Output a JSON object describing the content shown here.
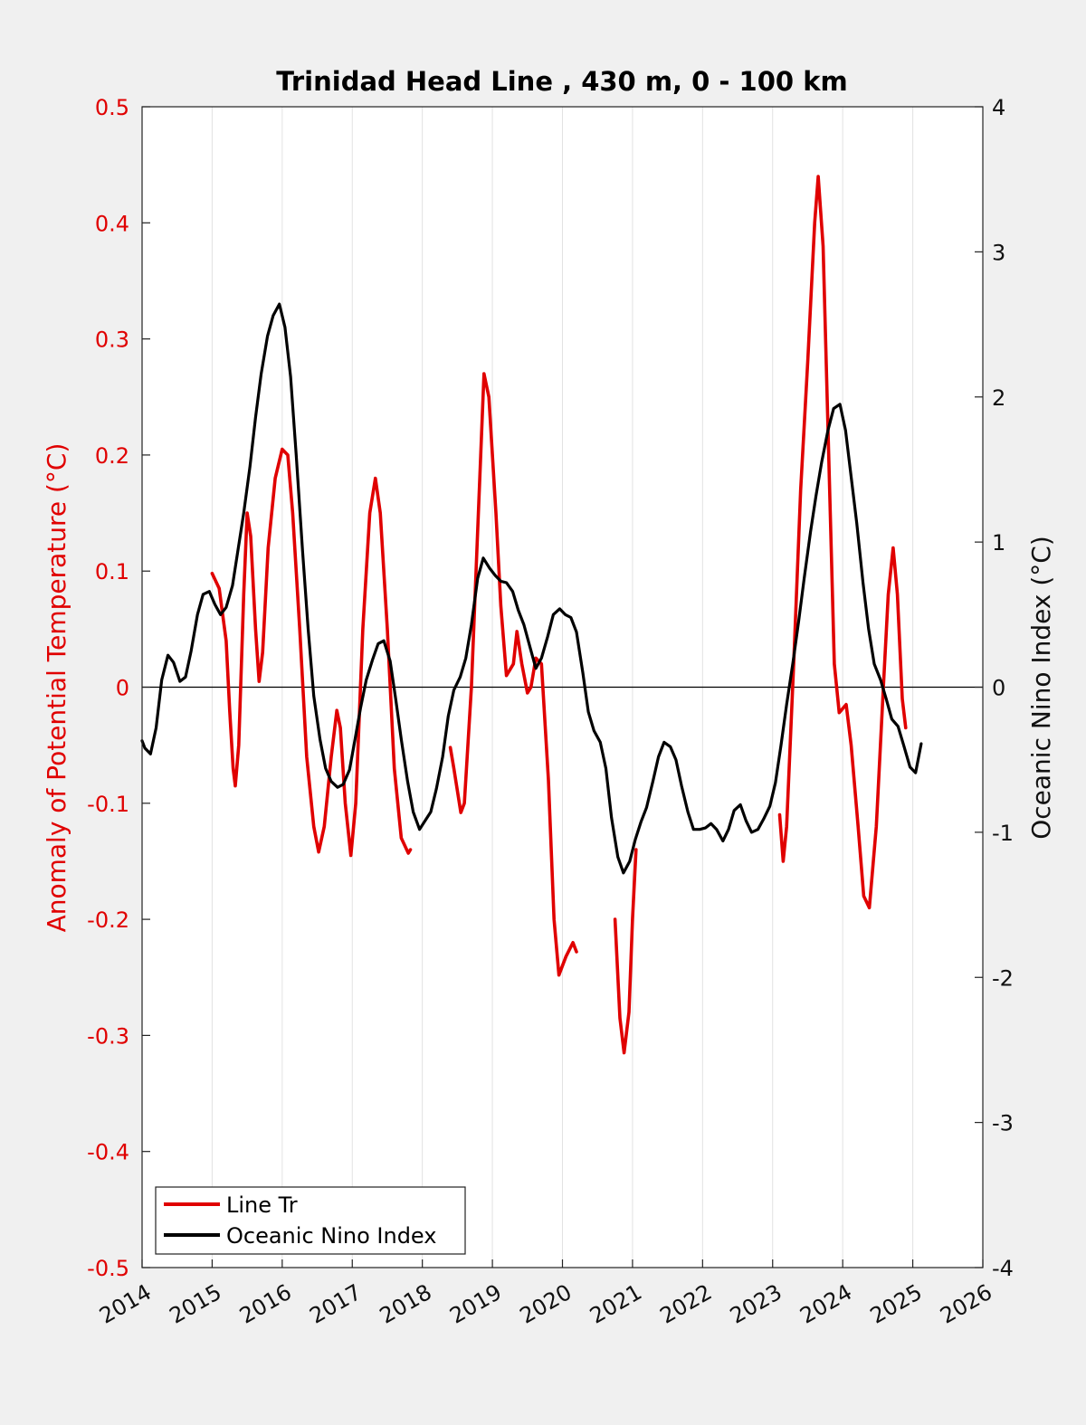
{
  "chart_data": {
    "type": "line",
    "title": "Trinidad Head Line , 430 m, 0 - 100 km",
    "ylabel_left": "Anomaly of Potential Temperature (°C)",
    "ylabel_right": "Oceanic Nino Index (°C)",
    "xlim": [
      2014,
      2026
    ],
    "ylim_left": [
      -0.5,
      0.5
    ],
    "ylim_right": [
      -4,
      4
    ],
    "x_ticks": [
      "2014",
      "2015",
      "2016",
      "2017",
      "2018",
      "2019",
      "2020",
      "2021",
      "2022",
      "2023",
      "2024",
      "2025",
      "2026"
    ],
    "y_left_ticks": [
      "0.5",
      "0.4",
      "0.3",
      "0.2",
      "0.1",
      "0",
      "-0.1",
      "-0.2",
      "-0.3",
      "-0.4",
      "-0.5"
    ],
    "y_right_ticks": [
      "4",
      "3",
      "2",
      "1",
      "0",
      "-1",
      "-2",
      "-3",
      "-4"
    ],
    "grid": "vertical",
    "legend_position": "bottom-left",
    "colors": {
      "line_tr": "#e00000",
      "oni": "#000000",
      "left_axis": "#e00000"
    },
    "series": [
      {
        "name": "Line Tr",
        "axis": "left",
        "segments": [
          [
            [
              2015.0,
              0.098
            ],
            [
              2015.1,
              0.085
            ],
            [
              2015.2,
              0.04
            ],
            [
              2015.25,
              -0.02
            ],
            [
              2015.3,
              -0.07
            ],
            [
              2015.33,
              -0.085
            ],
            [
              2015.38,
              -0.05
            ],
            [
              2015.45,
              0.08
            ],
            [
              2015.5,
              0.15
            ],
            [
              2015.55,
              0.13
            ],
            [
              2015.62,
              0.05
            ],
            [
              2015.67,
              0.005
            ],
            [
              2015.72,
              0.03
            ],
            [
              2015.8,
              0.12
            ],
            [
              2015.9,
              0.18
            ],
            [
              2016.0,
              0.205
            ],
            [
              2016.08,
              0.2
            ],
            [
              2016.15,
              0.15
            ],
            [
              2016.25,
              0.05
            ],
            [
              2016.35,
              -0.06
            ],
            [
              2016.45,
              -0.12
            ],
            [
              2016.52,
              -0.142
            ],
            [
              2016.6,
              -0.12
            ],
            [
              2016.7,
              -0.06
            ],
            [
              2016.78,
              -0.02
            ],
            [
              2016.83,
              -0.035
            ],
            [
              2016.9,
              -0.1
            ],
            [
              2016.98,
              -0.145
            ],
            [
              2017.05,
              -0.1
            ],
            [
              2017.15,
              0.05
            ],
            [
              2017.25,
              0.15
            ],
            [
              2017.33,
              0.18
            ],
            [
              2017.4,
              0.15
            ],
            [
              2017.5,
              0.05
            ],
            [
              2017.6,
              -0.07
            ],
            [
              2017.7,
              -0.13
            ],
            [
              2017.8,
              -0.143
            ],
            [
              2017.83,
              -0.14
            ]
          ],
          [
            [
              2018.4,
              -0.052
            ],
            [
              2018.45,
              -0.07
            ],
            [
              2018.55,
              -0.108
            ],
            [
              2018.6,
              -0.1
            ],
            [
              2018.7,
              0.0
            ],
            [
              2018.8,
              0.15
            ],
            [
              2018.88,
              0.27
            ],
            [
              2018.95,
              0.25
            ],
            [
              2019.05,
              0.15
            ],
            [
              2019.12,
              0.07
            ],
            [
              2019.2,
              0.01
            ],
            [
              2019.3,
              0.02
            ],
            [
              2019.35,
              0.048
            ],
            [
              2019.42,
              0.02
            ],
            [
              2019.5,
              -0.005
            ],
            [
              2019.55,
              0.0
            ],
            [
              2019.62,
              0.025
            ],
            [
              2019.7,
              0.02
            ],
            [
              2019.8,
              -0.08
            ],
            [
              2019.88,
              -0.2
            ],
            [
              2019.95,
              -0.248
            ],
            [
              2020.05,
              -0.232
            ],
            [
              2020.15,
              -0.22
            ],
            [
              2020.2,
              -0.228
            ]
          ],
          [
            [
              2020.75,
              -0.2
            ],
            [
              2020.82,
              -0.285
            ],
            [
              2020.88,
              -0.315
            ],
            [
              2020.95,
              -0.28
            ],
            [
              2021.0,
              -0.2
            ],
            [
              2021.05,
              -0.14
            ]
          ],
          [
            [
              2023.1,
              -0.11
            ],
            [
              2023.15,
              -0.15
            ],
            [
              2023.2,
              -0.12
            ],
            [
              2023.3,
              0.02
            ],
            [
              2023.4,
              0.17
            ],
            [
              2023.5,
              0.28
            ],
            [
              2023.6,
              0.4
            ],
            [
              2023.65,
              0.44
            ],
            [
              2023.72,
              0.38
            ],
            [
              2023.8,
              0.2
            ],
            [
              2023.88,
              0.02
            ],
            [
              2023.95,
              -0.022
            ],
            [
              2024.05,
              -0.015
            ],
            [
              2024.12,
              -0.05
            ],
            [
              2024.22,
              -0.12
            ],
            [
              2024.3,
              -0.18
            ],
            [
              2024.38,
              -0.19
            ],
            [
              2024.48,
              -0.12
            ],
            [
              2024.58,
              0.0
            ],
            [
              2024.65,
              0.08
            ],
            [
              2024.72,
              0.12
            ],
            [
              2024.78,
              0.08
            ],
            [
              2024.85,
              -0.01
            ],
            [
              2024.9,
              -0.035
            ]
          ]
        ]
      },
      {
        "name": "Oceanic Nino Index",
        "axis": "right",
        "segments": [
          [
            [
              2014.0,
              -0.37
            ],
            [
              2014.04,
              -0.42
            ],
            [
              2014.12,
              -0.46
            ],
            [
              2014.2,
              -0.28
            ],
            [
              2014.28,
              0.05
            ],
            [
              2014.37,
              0.22
            ],
            [
              2014.45,
              0.17
            ],
            [
              2014.54,
              0.04
            ],
            [
              2014.62,
              0.07
            ],
            [
              2014.7,
              0.25
            ],
            [
              2014.79,
              0.5
            ],
            [
              2014.87,
              0.64
            ],
            [
              2014.96,
              0.66
            ],
            [
              2015.04,
              0.57
            ],
            [
              2015.12,
              0.5
            ],
            [
              2015.2,
              0.55
            ],
            [
              2015.29,
              0.7
            ],
            [
              2015.37,
              0.95
            ],
            [
              2015.45,
              1.2
            ],
            [
              2015.54,
              1.52
            ],
            [
              2015.62,
              1.86
            ],
            [
              2015.7,
              2.16
            ],
            [
              2015.79,
              2.42
            ],
            [
              2015.87,
              2.56
            ],
            [
              2015.96,
              2.64
            ],
            [
              2016.04,
              2.48
            ],
            [
              2016.12,
              2.14
            ],
            [
              2016.2,
              1.6
            ],
            [
              2016.29,
              0.94
            ],
            [
              2016.37,
              0.4
            ],
            [
              2016.45,
              -0.06
            ],
            [
              2016.54,
              -0.36
            ],
            [
              2016.62,
              -0.56
            ],
            [
              2016.7,
              -0.65
            ],
            [
              2016.79,
              -0.69
            ],
            [
              2016.87,
              -0.67
            ],
            [
              2016.96,
              -0.57
            ],
            [
              2017.04,
              -0.36
            ],
            [
              2017.12,
              -0.14
            ],
            [
              2017.2,
              0.05
            ],
            [
              2017.29,
              0.19
            ],
            [
              2017.37,
              0.3
            ],
            [
              2017.45,
              0.32
            ],
            [
              2017.54,
              0.18
            ],
            [
              2017.62,
              -0.08
            ],
            [
              2017.7,
              -0.36
            ],
            [
              2017.79,
              -0.65
            ],
            [
              2017.87,
              -0.86
            ],
            [
              2017.96,
              -0.98
            ],
            [
              2018.04,
              -0.92
            ],
            [
              2018.12,
              -0.86
            ],
            [
              2018.2,
              -0.7
            ],
            [
              2018.29,
              -0.48
            ],
            [
              2018.37,
              -0.2
            ],
            [
              2018.45,
              -0.02
            ],
            [
              2018.54,
              0.07
            ],
            [
              2018.62,
              0.2
            ],
            [
              2018.7,
              0.43
            ],
            [
              2018.79,
              0.75
            ],
            [
              2018.87,
              0.89
            ],
            [
              2018.96,
              0.82
            ],
            [
              2019.04,
              0.77
            ],
            [
              2019.12,
              0.73
            ],
            [
              2019.2,
              0.72
            ],
            [
              2019.29,
              0.66
            ],
            [
              2019.37,
              0.53
            ],
            [
              2019.45,
              0.43
            ],
            [
              2019.54,
              0.27
            ],
            [
              2019.62,
              0.13
            ],
            [
              2019.7,
              0.2
            ],
            [
              2019.79,
              0.35
            ],
            [
              2019.87,
              0.5
            ],
            [
              2019.96,
              0.54
            ],
            [
              2020.04,
              0.5
            ],
            [
              2020.12,
              0.48
            ],
            [
              2020.2,
              0.38
            ],
            [
              2020.29,
              0.1
            ],
            [
              2020.37,
              -0.17
            ],
            [
              2020.45,
              -0.3
            ],
            [
              2020.54,
              -0.38
            ],
            [
              2020.62,
              -0.56
            ],
            [
              2020.7,
              -0.9
            ],
            [
              2020.79,
              -1.17
            ],
            [
              2020.87,
              -1.28
            ],
            [
              2020.96,
              -1.2
            ],
            [
              2021.04,
              -1.05
            ],
            [
              2021.12,
              -0.93
            ],
            [
              2021.2,
              -0.83
            ],
            [
              2021.29,
              -0.65
            ],
            [
              2021.37,
              -0.48
            ],
            [
              2021.45,
              -0.38
            ],
            [
              2021.54,
              -0.41
            ],
            [
              2021.62,
              -0.5
            ],
            [
              2021.7,
              -0.68
            ],
            [
              2021.79,
              -0.86
            ],
            [
              2021.87,
              -0.98
            ],
            [
              2021.96,
              -0.98
            ],
            [
              2022.04,
              -0.97
            ],
            [
              2022.12,
              -0.94
            ],
            [
              2022.2,
              -0.98
            ],
            [
              2022.29,
              -1.06
            ],
            [
              2022.37,
              -0.98
            ],
            [
              2022.45,
              -0.85
            ],
            [
              2022.54,
              -0.81
            ],
            [
              2022.62,
              -0.92
            ],
            [
              2022.7,
              -1.0
            ],
            [
              2022.79,
              -0.98
            ],
            [
              2022.87,
              -0.91
            ],
            [
              2022.96,
              -0.82
            ],
            [
              2023.04,
              -0.66
            ],
            [
              2023.12,
              -0.4
            ],
            [
              2023.2,
              -0.12
            ],
            [
              2023.29,
              0.17
            ],
            [
              2023.37,
              0.45
            ],
            [
              2023.45,
              0.75
            ],
            [
              2023.54,
              1.07
            ],
            [
              2023.62,
              1.32
            ],
            [
              2023.7,
              1.55
            ],
            [
              2023.79,
              1.77
            ],
            [
              2023.87,
              1.92
            ],
            [
              2023.96,
              1.95
            ],
            [
              2024.04,
              1.77
            ],
            [
              2024.12,
              1.45
            ],
            [
              2024.2,
              1.13
            ],
            [
              2024.29,
              0.72
            ],
            [
              2024.37,
              0.4
            ],
            [
              2024.45,
              0.16
            ],
            [
              2024.54,
              0.05
            ],
            [
              2024.62,
              -0.08
            ],
            [
              2024.7,
              -0.22
            ],
            [
              2024.79,
              -0.27
            ],
            [
              2024.87,
              -0.4
            ],
            [
              2024.96,
              -0.55
            ],
            [
              2025.04,
              -0.59
            ],
            [
              2025.12,
              -0.39
            ]
          ]
        ]
      }
    ]
  }
}
